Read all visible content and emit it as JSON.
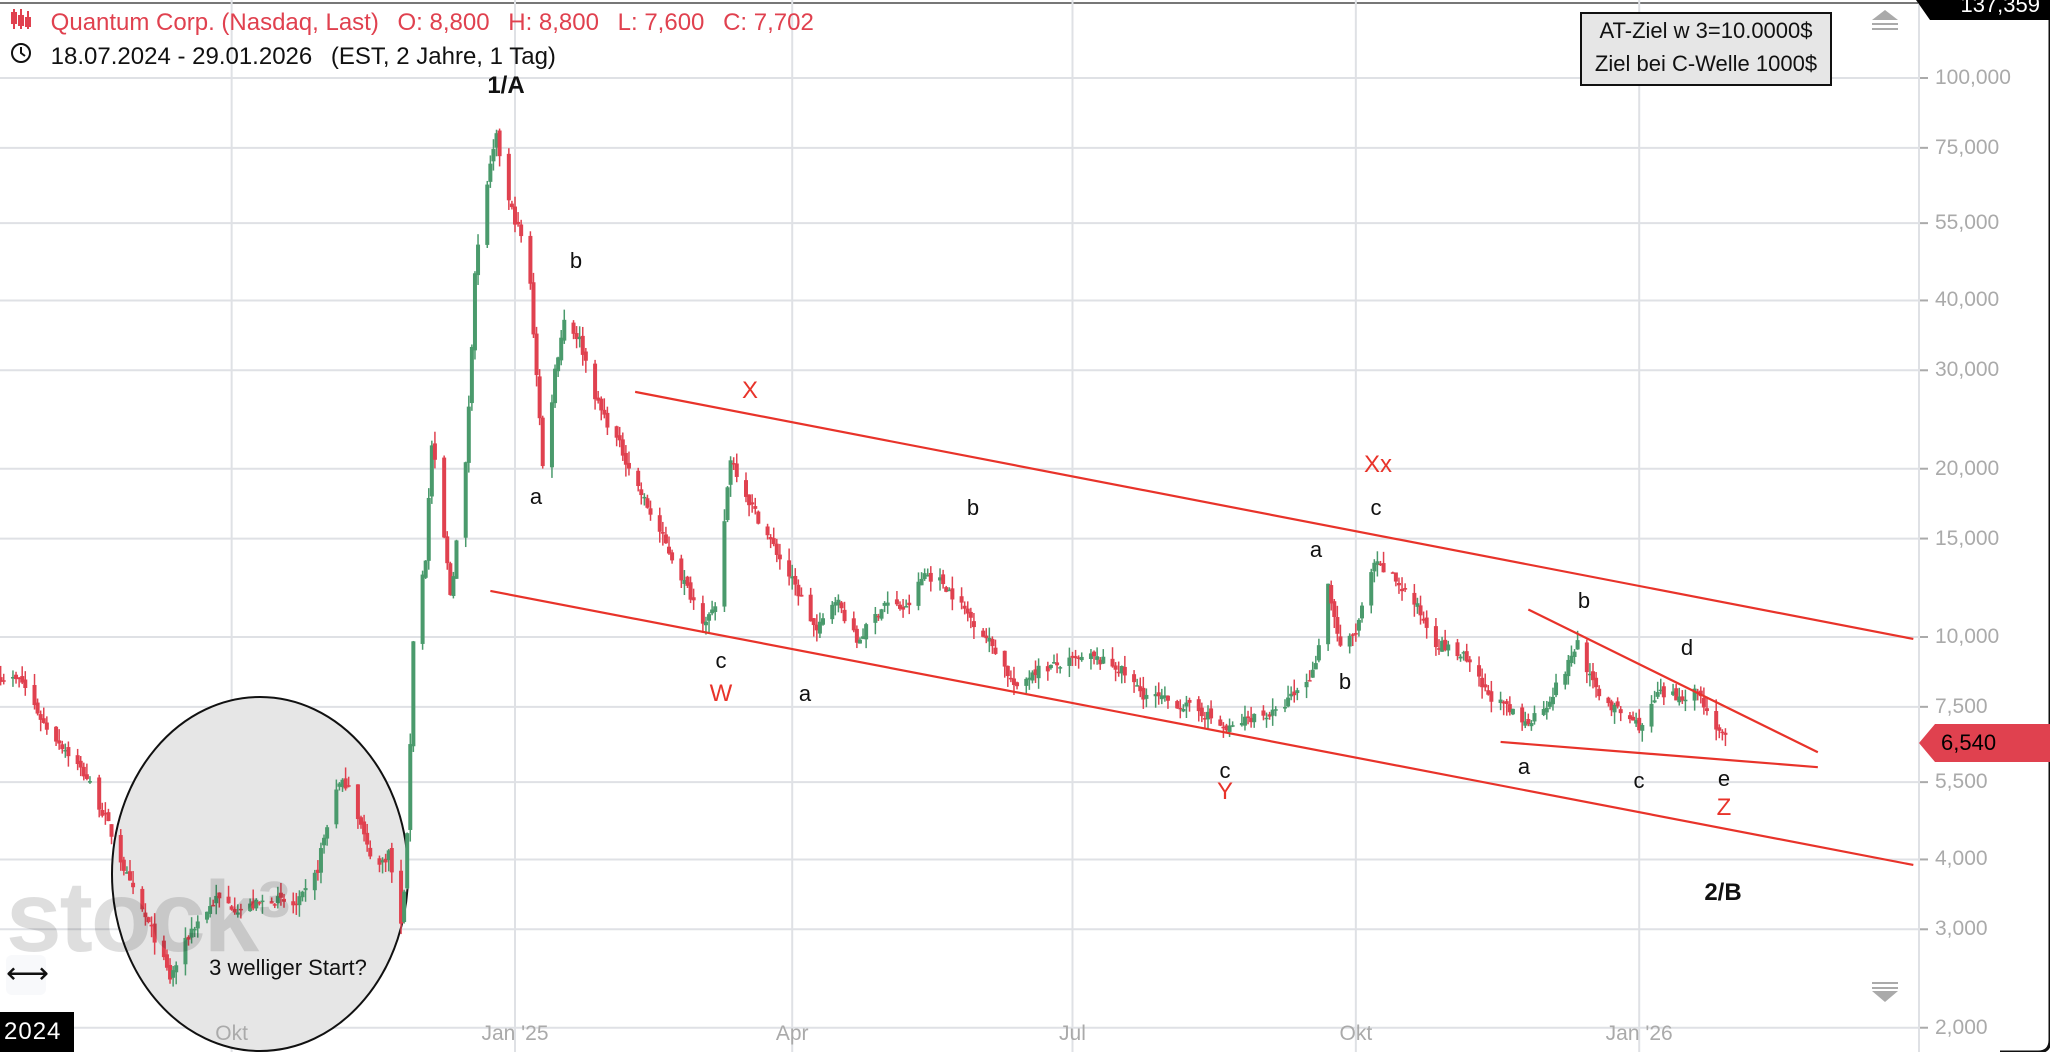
{
  "header": {
    "instrument": "Quantum Corp. (Nasdaq, Last)",
    "open": "O: 8,800",
    "high": "H: 8,800",
    "low": "L: 7,600",
    "close": "C: 7,702",
    "range": "18.07.2024 - 29.01.2026",
    "range_detail": "(EST, 2 Jahre, 1 Tag)",
    "icons": {
      "instrument": "candlestick-icon",
      "range": "clock-icon"
    }
  },
  "info_box": {
    "line1": "AT-Ziel w 3=10.0000$",
    "line2": "Ziel bei C-Welle 1000$"
  },
  "axis": {
    "top_value": "137,359",
    "last_price": "6,540",
    "year_label": "2024",
    "watermark": "stock3"
  },
  "annotations": {
    "wave_1A": "1/A",
    "a1": "a",
    "b1": "b",
    "X": "X",
    "c_W": "c",
    "W": "W",
    "a2": "a",
    "b2": "b",
    "c_Y": "c",
    "Y": "Y",
    "a3": "a",
    "b3": "b",
    "Xx": "Xx",
    "c_Xx": "c",
    "b4": "b",
    "d": "d",
    "a4": "a",
    "c4": "c",
    "e": "e",
    "Z": "Z",
    "wave_2B": "2/B",
    "ellipse_note": "3 welliger Start?"
  },
  "colors": {
    "up": "#4a9a6c",
    "down": "#e0414f",
    "trendline": "#e8332a",
    "grid": "#dfe1e5",
    "last_price": "#e0414f"
  },
  "chart_data": {
    "type": "candlestick",
    "title": "",
    "y_scale": "log",
    "ylim": [
      1950,
      137359
    ],
    "y_ticks": [
      {
        "value": 100000,
        "label": "100,000"
      },
      {
        "value": 75000,
        "label": "75,000"
      },
      {
        "value": 55000,
        "label": "55,000"
      },
      {
        "value": 40000,
        "label": "40,000"
      },
      {
        "value": 30000,
        "label": "30,000"
      },
      {
        "value": 20000,
        "label": "20,000"
      },
      {
        "value": 15000,
        "label": "15,000"
      },
      {
        "value": 10000,
        "label": "10,000"
      },
      {
        "value": 7500,
        "label": "7,500"
      },
      {
        "value": 5500,
        "label": "5,500"
      },
      {
        "value": 4000,
        "label": "4,000"
      },
      {
        "value": 3000,
        "label": "3,000"
      },
      {
        "value": 2000,
        "label": "2,000"
      }
    ],
    "x_range": [
      "2024-07-18",
      "2026-01-29"
    ],
    "x_ticks": [
      {
        "date": "2024-10-01",
        "label": "Okt"
      },
      {
        "date": "2025-01-01",
        "label": "Jan '25"
      },
      {
        "date": "2025-04-01",
        "label": "Apr"
      },
      {
        "date": "2025-07-01",
        "label": "Jul"
      },
      {
        "date": "2025-10-01",
        "label": "Okt"
      },
      {
        "date": "2026-01-01",
        "label": "Jan '26"
      }
    ],
    "grid": true,
    "approx_closes": [
      [
        "2024-07-18",
        8500
      ],
      [
        "2024-07-25",
        8300
      ],
      [
        "2024-08-01",
        7000
      ],
      [
        "2024-08-08",
        6300
      ],
      [
        "2024-08-15",
        5600
      ],
      [
        "2024-08-22",
        4600
      ],
      [
        "2024-08-29",
        3600
      ],
      [
        "2024-09-06",
        2900
      ],
      [
        "2024-09-11",
        2450
      ],
      [
        "2024-09-18",
        3000
      ],
      [
        "2024-09-26",
        3400
      ],
      [
        "2024-10-04",
        3250
      ],
      [
        "2024-10-14",
        3400
      ],
      [
        "2024-10-22",
        3300
      ],
      [
        "2024-10-28",
        3700
      ],
      [
        "2024-11-04",
        5400
      ],
      [
        "2024-11-08",
        5500
      ],
      [
        "2024-11-14",
        4200
      ],
      [
        "2024-11-18",
        3900
      ],
      [
        "2024-11-21",
        4100
      ],
      [
        "2024-11-25",
        3000
      ],
      [
        "2024-11-27",
        4300
      ],
      [
        "2024-11-29",
        10000
      ],
      [
        "2024-12-03",
        14000
      ],
      [
        "2024-12-05",
        22000
      ],
      [
        "2024-12-09",
        15000
      ],
      [
        "2024-12-11",
        12000
      ],
      [
        "2024-12-16",
        20000
      ],
      [
        "2024-12-19",
        45000
      ],
      [
        "2024-12-23",
        65000
      ],
      [
        "2024-12-26",
        78000
      ],
      [
        "2024-12-30",
        60000
      ],
      [
        "2025-01-03",
        52000
      ],
      [
        "2025-01-06",
        42000
      ],
      [
        "2025-01-08",
        30000
      ],
      [
        "2025-01-10",
        20000
      ],
      [
        "2025-01-14",
        30000
      ],
      [
        "2025-01-17",
        37000
      ],
      [
        "2025-01-22",
        34000
      ],
      [
        "2025-01-28",
        26000
      ],
      [
        "2025-02-04",
        22000
      ],
      [
        "2025-02-11",
        18000
      ],
      [
        "2025-02-18",
        15000
      ],
      [
        "2025-02-25",
        12500
      ],
      [
        "2025-03-03",
        10800
      ],
      [
        "2025-03-07",
        11000
      ],
      [
        "2025-03-12",
        21000
      ],
      [
        "2025-03-18",
        17500
      ],
      [
        "2025-03-26",
        14500
      ],
      [
        "2025-04-03",
        12000
      ],
      [
        "2025-04-09",
        10200
      ],
      [
        "2025-04-15",
        11800
      ],
      [
        "2025-04-22",
        9800
      ],
      [
        "2025-05-01",
        11500
      ],
      [
        "2025-05-08",
        11200
      ],
      [
        "2025-05-14",
        13000
      ],
      [
        "2025-05-20",
        12500
      ],
      [
        "2025-05-28",
        11000
      ],
      [
        "2025-06-06",
        9500
      ],
      [
        "2025-06-13",
        8000
      ],
      [
        "2025-06-18",
        8700
      ],
      [
        "2025-06-26",
        8900
      ],
      [
        "2025-07-07",
        9200
      ],
      [
        "2025-07-16",
        8800
      ],
      [
        "2025-07-24",
        7900
      ],
      [
        "2025-08-04",
        7600
      ],
      [
        "2025-08-13",
        7300
      ],
      [
        "2025-08-20",
        6800
      ],
      [
        "2025-08-28",
        7200
      ],
      [
        "2025-09-05",
        7300
      ],
      [
        "2025-09-12",
        8000
      ],
      [
        "2025-09-17",
        8600
      ],
      [
        "2025-09-22",
        12400
      ],
      [
        "2025-09-26",
        9500
      ],
      [
        "2025-10-01",
        10200
      ],
      [
        "2025-10-07",
        13500
      ],
      [
        "2025-10-13",
        12800
      ],
      [
        "2025-10-20",
        11500
      ],
      [
        "2025-10-27",
        9800
      ],
      [
        "2025-11-05",
        9200
      ],
      [
        "2025-11-12",
        8000
      ],
      [
        "2025-11-18",
        7500
      ],
      [
        "2025-11-25",
        7000
      ],
      [
        "2025-12-02",
        7600
      ],
      [
        "2025-12-08",
        8700
      ],
      [
        "2025-12-12",
        9800
      ],
      [
        "2025-12-17",
        8200
      ],
      [
        "2025-12-23",
        7500
      ],
      [
        "2026-01-02",
        6900
      ],
      [
        "2026-01-07",
        7900
      ],
      [
        "2026-01-13",
        7800
      ],
      [
        "2026-01-20",
        8000
      ],
      [
        "2026-01-24",
        7200
      ],
      [
        "2026-01-29",
        6540
      ]
    ],
    "trendlines": [
      {
        "name": "upper-channel",
        "from": [
          "2025-02-09",
          27450
        ],
        "to": [
          "2026-03-31",
          9920
        ]
      },
      {
        "name": "lower-channel",
        "from": [
          "2024-12-24",
          12090
        ],
        "to": [
          "2026-03-31",
          3910
        ]
      },
      {
        "name": "triangle-upper",
        "from": [
          "2025-11-26",
          11200
        ],
        "to": [
          "2026-02-28",
          6220
        ]
      },
      {
        "name": "triangle-lower",
        "from": [
          "2025-11-17",
          6490
        ],
        "to": [
          "2026-02-28",
          5850
        ]
      }
    ],
    "last_price": 6540
  }
}
